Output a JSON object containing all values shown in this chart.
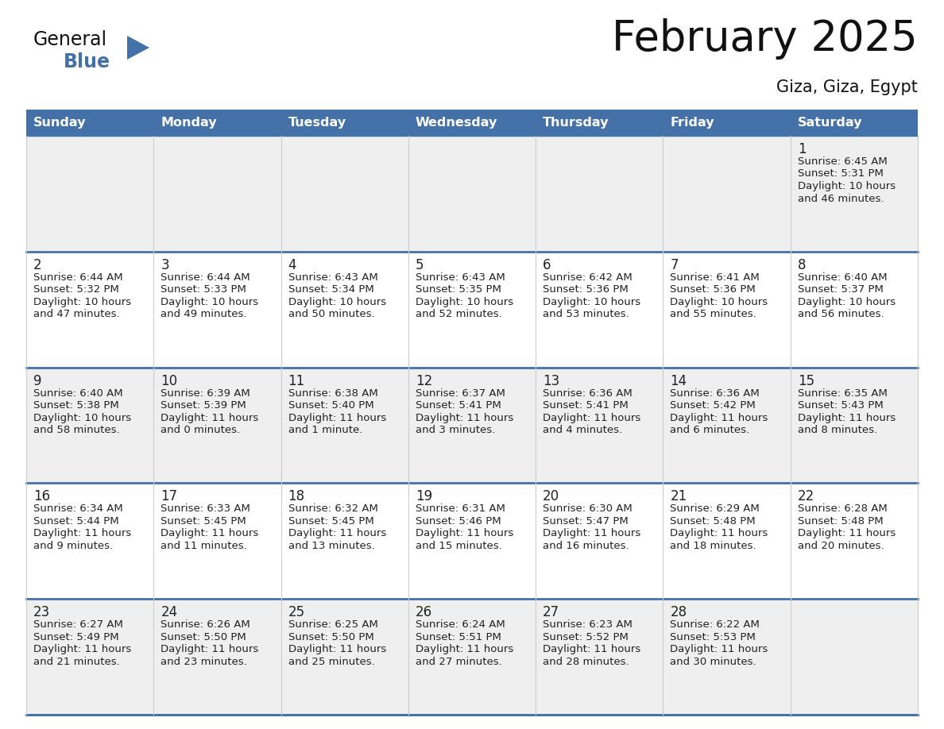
{
  "title": "February 2025",
  "subtitle": "Giza, Giza, Egypt",
  "days_of_week": [
    "Sunday",
    "Monday",
    "Tuesday",
    "Wednesday",
    "Thursday",
    "Friday",
    "Saturday"
  ],
  "header_bg": "#4472a8",
  "header_text": "#ffffff",
  "row_bg_light": "#efefef",
  "row_bg_white": "#ffffff",
  "cell_border_color": "#4472a8",
  "grid_line_color": "#cccccc",
  "day_num_color": "#222222",
  "info_text_color": "#222222",
  "logo_triangle_color": "#4472a8",
  "logo_blue_color": "#4472a8",
  "calendar_data": [
    [
      null,
      null,
      null,
      null,
      null,
      null,
      {
        "day": "1",
        "sunrise": "6:45 AM",
        "sunset": "5:31 PM",
        "daylight_line1": "Daylight: 10 hours",
        "daylight_line2": "and 46 minutes."
      }
    ],
    [
      {
        "day": "2",
        "sunrise": "6:44 AM",
        "sunset": "5:32 PM",
        "daylight_line1": "Daylight: 10 hours",
        "daylight_line2": "and 47 minutes."
      },
      {
        "day": "3",
        "sunrise": "6:44 AM",
        "sunset": "5:33 PM",
        "daylight_line1": "Daylight: 10 hours",
        "daylight_line2": "and 49 minutes."
      },
      {
        "day": "4",
        "sunrise": "6:43 AM",
        "sunset": "5:34 PM",
        "daylight_line1": "Daylight: 10 hours",
        "daylight_line2": "and 50 minutes."
      },
      {
        "day": "5",
        "sunrise": "6:43 AM",
        "sunset": "5:35 PM",
        "daylight_line1": "Daylight: 10 hours",
        "daylight_line2": "and 52 minutes."
      },
      {
        "day": "6",
        "sunrise": "6:42 AM",
        "sunset": "5:36 PM",
        "daylight_line1": "Daylight: 10 hours",
        "daylight_line2": "and 53 minutes."
      },
      {
        "day": "7",
        "sunrise": "6:41 AM",
        "sunset": "5:36 PM",
        "daylight_line1": "Daylight: 10 hours",
        "daylight_line2": "and 55 minutes."
      },
      {
        "day": "8",
        "sunrise": "6:40 AM",
        "sunset": "5:37 PM",
        "daylight_line1": "Daylight: 10 hours",
        "daylight_line2": "and 56 minutes."
      }
    ],
    [
      {
        "day": "9",
        "sunrise": "6:40 AM",
        "sunset": "5:38 PM",
        "daylight_line1": "Daylight: 10 hours",
        "daylight_line2": "and 58 minutes."
      },
      {
        "day": "10",
        "sunrise": "6:39 AM",
        "sunset": "5:39 PM",
        "daylight_line1": "Daylight: 11 hours",
        "daylight_line2": "and 0 minutes."
      },
      {
        "day": "11",
        "sunrise": "6:38 AM",
        "sunset": "5:40 PM",
        "daylight_line1": "Daylight: 11 hours",
        "daylight_line2": "and 1 minute."
      },
      {
        "day": "12",
        "sunrise": "6:37 AM",
        "sunset": "5:41 PM",
        "daylight_line1": "Daylight: 11 hours",
        "daylight_line2": "and 3 minutes."
      },
      {
        "day": "13",
        "sunrise": "6:36 AM",
        "sunset": "5:41 PM",
        "daylight_line1": "Daylight: 11 hours",
        "daylight_line2": "and 4 minutes."
      },
      {
        "day": "14",
        "sunrise": "6:36 AM",
        "sunset": "5:42 PM",
        "daylight_line1": "Daylight: 11 hours",
        "daylight_line2": "and 6 minutes."
      },
      {
        "day": "15",
        "sunrise": "6:35 AM",
        "sunset": "5:43 PM",
        "daylight_line1": "Daylight: 11 hours",
        "daylight_line2": "and 8 minutes."
      }
    ],
    [
      {
        "day": "16",
        "sunrise": "6:34 AM",
        "sunset": "5:44 PM",
        "daylight_line1": "Daylight: 11 hours",
        "daylight_line2": "and 9 minutes."
      },
      {
        "day": "17",
        "sunrise": "6:33 AM",
        "sunset": "5:45 PM",
        "daylight_line1": "Daylight: 11 hours",
        "daylight_line2": "and 11 minutes."
      },
      {
        "day": "18",
        "sunrise": "6:32 AM",
        "sunset": "5:45 PM",
        "daylight_line1": "Daylight: 11 hours",
        "daylight_line2": "and 13 minutes."
      },
      {
        "day": "19",
        "sunrise": "6:31 AM",
        "sunset": "5:46 PM",
        "daylight_line1": "Daylight: 11 hours",
        "daylight_line2": "and 15 minutes."
      },
      {
        "day": "20",
        "sunrise": "6:30 AM",
        "sunset": "5:47 PM",
        "daylight_line1": "Daylight: 11 hours",
        "daylight_line2": "and 16 minutes."
      },
      {
        "day": "21",
        "sunrise": "6:29 AM",
        "sunset": "5:48 PM",
        "daylight_line1": "Daylight: 11 hours",
        "daylight_line2": "and 18 minutes."
      },
      {
        "day": "22",
        "sunrise": "6:28 AM",
        "sunset": "5:48 PM",
        "daylight_line1": "Daylight: 11 hours",
        "daylight_line2": "and 20 minutes."
      }
    ],
    [
      {
        "day": "23",
        "sunrise": "6:27 AM",
        "sunset": "5:49 PM",
        "daylight_line1": "Daylight: 11 hours",
        "daylight_line2": "and 21 minutes."
      },
      {
        "day": "24",
        "sunrise": "6:26 AM",
        "sunset": "5:50 PM",
        "daylight_line1": "Daylight: 11 hours",
        "daylight_line2": "and 23 minutes."
      },
      {
        "day": "25",
        "sunrise": "6:25 AM",
        "sunset": "5:50 PM",
        "daylight_line1": "Daylight: 11 hours",
        "daylight_line2": "and 25 minutes."
      },
      {
        "day": "26",
        "sunrise": "6:24 AM",
        "sunset": "5:51 PM",
        "daylight_line1": "Daylight: 11 hours",
        "daylight_line2": "and 27 minutes."
      },
      {
        "day": "27",
        "sunrise": "6:23 AM",
        "sunset": "5:52 PM",
        "daylight_line1": "Daylight: 11 hours",
        "daylight_line2": "and 28 minutes."
      },
      {
        "day": "28",
        "sunrise": "6:22 AM",
        "sunset": "5:53 PM",
        "daylight_line1": "Daylight: 11 hours",
        "daylight_line2": "and 30 minutes."
      },
      null
    ]
  ]
}
